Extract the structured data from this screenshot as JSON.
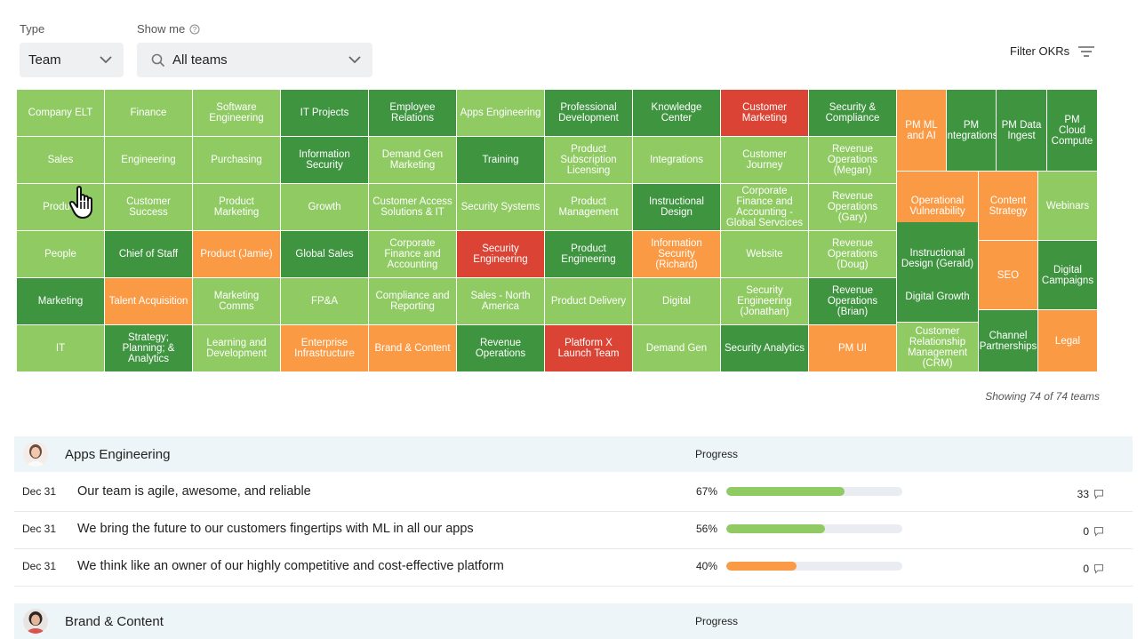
{
  "type_filter": {
    "label": "Type",
    "value": "Team"
  },
  "show_filter": {
    "label": "Show me",
    "value": "All teams"
  },
  "filter_okrs": "Filter OKRs",
  "showing_text": "Showing 74 of 74 teams",
  "colors": {
    "light_green": "#8fca63",
    "dark_green": "#3f9440",
    "orange": "#fb9a45",
    "red": "#db4435"
  },
  "tiles": [
    {
      "label": "Company ELT",
      "color": "lg"
    },
    {
      "label": "Finance",
      "color": "lg"
    },
    {
      "label": "Software Engineering",
      "color": "lg"
    },
    {
      "label": "IT Projects",
      "color": "dg"
    },
    {
      "label": "Employee Relations",
      "color": "dg"
    },
    {
      "label": "Apps Engineering",
      "color": "lg"
    },
    {
      "label": "Professional Development",
      "color": "dg"
    },
    {
      "label": "Knowledge Center",
      "color": "dg"
    },
    {
      "label": "Customer Marketing",
      "color": "rd"
    },
    {
      "label": "Security & Compliance",
      "color": "dg"
    },
    {
      "label": "Sales",
      "color": "lg"
    },
    {
      "label": "Engineering",
      "color": "lg"
    },
    {
      "label": "Purchasing",
      "color": "lg"
    },
    {
      "label": "Information Security",
      "color": "dg"
    },
    {
      "label": "Demand Gen Marketing",
      "color": "lg"
    },
    {
      "label": "Training",
      "color": "dg"
    },
    {
      "label": "Product Subscription Licensing",
      "color": "lg"
    },
    {
      "label": "Integrations",
      "color": "lg"
    },
    {
      "label": "Customer Journey",
      "color": "lg"
    },
    {
      "label": "Revenue Operations (Megan)",
      "color": "lg"
    },
    {
      "label": "Product",
      "color": "lg"
    },
    {
      "label": "Customer Success",
      "color": "lg"
    },
    {
      "label": "Product Marketing",
      "color": "lg"
    },
    {
      "label": "Growth",
      "color": "lg"
    },
    {
      "label": "Customer Access Solutions & IT",
      "color": "lg"
    },
    {
      "label": "Security Systems",
      "color": "lg"
    },
    {
      "label": "Product Management",
      "color": "lg"
    },
    {
      "label": "Instructional Design",
      "color": "dg"
    },
    {
      "label": "Corporate Finance and Accounting - Global Servcices",
      "color": "lg"
    },
    {
      "label": "Revenue Operations (Gary)",
      "color": "lg"
    },
    {
      "label": "People",
      "color": "lg"
    },
    {
      "label": "Chief of Staff",
      "color": "dg"
    },
    {
      "label": "Product (Jamie)",
      "color": "or"
    },
    {
      "label": "Global Sales",
      "color": "dg"
    },
    {
      "label": "Corporate Finance and Accounting",
      "color": "lg"
    },
    {
      "label": "Security Engineering",
      "color": "rd"
    },
    {
      "label": "Product Engineering",
      "color": "dg"
    },
    {
      "label": "Information Security (Richard)",
      "color": "or"
    },
    {
      "label": "Website",
      "color": "lg"
    },
    {
      "label": "Revenue Operations (Doug)",
      "color": "lg"
    },
    {
      "label": "Marketing",
      "color": "dg"
    },
    {
      "label": "Talent Acquisition",
      "color": "or"
    },
    {
      "label": "Marketing Comms",
      "color": "lg"
    },
    {
      "label": "FP&A",
      "color": "lg"
    },
    {
      "label": "Compliance and Reporting",
      "color": "lg"
    },
    {
      "label": "Sales - North America",
      "color": "lg"
    },
    {
      "label": "Product Delivery",
      "color": "lg"
    },
    {
      "label": "Digital",
      "color": "lg"
    },
    {
      "label": "Security Engineering (Jonathan)",
      "color": "lg"
    },
    {
      "label": "Revenue Operations (Brian)",
      "color": "dg"
    },
    {
      "label": "IT",
      "color": "lg"
    },
    {
      "label": "Strategy; Planning; & Analytics",
      "color": "dg"
    },
    {
      "label": "Learning and Development",
      "color": "lg"
    },
    {
      "label": "Enterprise Infrastructure",
      "color": "or"
    },
    {
      "label": "Brand & Content",
      "color": "or"
    },
    {
      "label": "Revenue Operations",
      "color": "dg"
    },
    {
      "label": "Platform X Launch Team",
      "color": "rd"
    },
    {
      "label": "Demand Gen",
      "color": "lg"
    },
    {
      "label": "Security Analytics",
      "color": "dg"
    },
    {
      "label": "PM UI",
      "color": "or"
    },
    {
      "label": "PM ML and AI",
      "color": "or"
    },
    {
      "label": "PM Integrations",
      "color": "dg"
    },
    {
      "label": "PM Data Ingest",
      "color": "dg"
    },
    {
      "label": "PM Cloud Compute",
      "color": "dg"
    },
    {
      "label": "Operational Vulnerability",
      "color": "or"
    },
    {
      "label": "Content Strategy",
      "color": "or"
    },
    {
      "label": "Webinars",
      "color": "lg"
    },
    {
      "label": "Instructional Design (Gerald)",
      "color": "dg"
    },
    {
      "label": "SEO",
      "color": "or"
    },
    {
      "label": "Digital Campaigns",
      "color": "dg"
    },
    {
      "label": "Digital Growth",
      "color": "dg"
    },
    {
      "label": "Customer Relationship Management (CRM)",
      "color": "lg"
    },
    {
      "label": "Channel Partnerships",
      "color": "dg"
    },
    {
      "label": "Legal",
      "color": "or"
    }
  ],
  "sections": [
    {
      "title": "Apps Engineering",
      "progress_header": "Progress",
      "rows": [
        {
          "date": "Dec 31",
          "text": "Our team is agile, awesome, and reliable",
          "pct_label": "67%",
          "progress": 0.67,
          "color": "#8fca63",
          "comments": "33"
        },
        {
          "date": "Dec 31",
          "text": "We bring the future to our customers fingertips with ML in all our apps",
          "pct_label": "56%",
          "progress": 0.56,
          "color": "#8fca63",
          "comments": "0"
        },
        {
          "date": "Dec 31",
          "text": "We think like an owner of our highly competitive and cost-effective platform",
          "pct_label": "40%",
          "progress": 0.4,
          "color": "#fb9a45",
          "comments": "0"
        }
      ]
    },
    {
      "title": "Brand & Content",
      "progress_header": "Progress",
      "rows": []
    }
  ]
}
